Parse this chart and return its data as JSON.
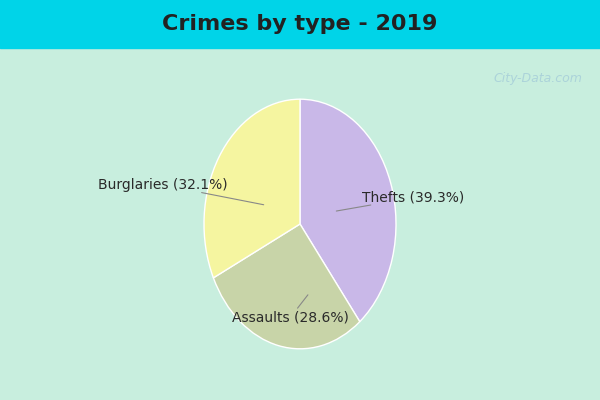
{
  "title": "Crimes by type - 2019",
  "slices": [
    {
      "label": "Thefts",
      "pct": 39.3,
      "color": "#c9b8e8"
    },
    {
      "label": "Assaults",
      "pct": 28.6,
      "color": "#c8d4a8"
    },
    {
      "label": "Burglaries",
      "pct": 32.1,
      "color": "#f5f5a0"
    }
  ],
  "bg_color_top": "#00d4e8",
  "bg_color_main": "#c8eede",
  "title_fontsize": 16,
  "label_fontsize": 10,
  "watermark": "City-Data.com"
}
